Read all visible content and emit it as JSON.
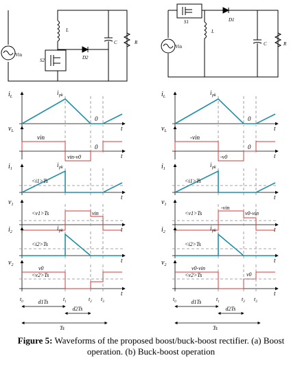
{
  "left_circuit": {
    "source": "Vin",
    "inductor": "L",
    "diode": "D2",
    "switch": "S2",
    "capacitor": "C",
    "resistor": "R"
  },
  "right_circuit": {
    "source": "Vin",
    "inductor": "L",
    "diode": "D1",
    "switch": "S1",
    "capacitor": "C",
    "resistor": "R"
  },
  "left_waveforms": {
    "iL": {
      "ylabel_main": "i",
      "ylabel_sub": "L",
      "peak": "pk",
      "zero": "0",
      "x": "t"
    },
    "vL": {
      "ylabel_main": "v",
      "ylabel_sub": "L",
      "top": "vin",
      "bottom": "vin-v0",
      "zero": "0",
      "x": "t"
    },
    "i1": {
      "ylabel_main": "i",
      "ylabel_sub": "1",
      "peak": "pk",
      "avg": "<i1>Ts",
      "x": "t"
    },
    "v1": {
      "ylabel_main": "v",
      "ylabel_sub": "1",
      "avg": "<v1>Ts",
      "level": "vin",
      "x": "t"
    },
    "i2": {
      "ylabel_main": "i",
      "ylabel_sub": "2",
      "peak": "pk",
      "avg": "<i2>Ts",
      "x": "t"
    },
    "v2": {
      "ylabel_main": "v",
      "ylabel_sub": "2",
      "level": "v0",
      "avg": "<v2>Ts",
      "x": "t"
    },
    "ticks": [
      "t0",
      "t1",
      "t2",
      "t3"
    ],
    "d1": "d1Ts",
    "d2": "d2Ts",
    "ts": "Ts"
  },
  "right_waveforms": {
    "iL": {
      "ylabel_main": "i",
      "ylabel_sub": "L",
      "peak": "pk",
      "zero": "0",
      "x": "t"
    },
    "vL": {
      "ylabel_main": "v",
      "ylabel_sub": "L",
      "top": "-vin",
      "bottom": "-v0",
      "zero": "0",
      "x": "t"
    },
    "i1": {
      "ylabel_main": "i",
      "ylabel_sub": "1",
      "peak": "pk",
      "avg": "<i1>Ts",
      "x": "t"
    },
    "v1": {
      "ylabel_main": "v",
      "ylabel_sub": "1",
      "avg": "<v1>Ts",
      "level": "v0-vin",
      "level2": "-vin",
      "x": "t"
    },
    "i2": {
      "ylabel_main": "i",
      "ylabel_sub": "2",
      "peak": "pk",
      "avg": "<i2>Ts",
      "x": "t"
    },
    "v2": {
      "ylabel_main": "v",
      "ylabel_sub": "2",
      "level": "v0-vin",
      "avg": "<v2>Ts",
      "level2": "v0",
      "x": "t"
    },
    "ticks": [
      "t0",
      "t1",
      "t2",
      "t3"
    ],
    "d1": "d1Ts",
    "d2": "d2Ts",
    "ts": "Ts"
  },
  "caption": {
    "label": "Figure 5:",
    "text": "Waveforms of the proposed boost/buck-boost rectifier. (a) Boost operation. (b) Buck-boost operation"
  },
  "colors": {
    "teal": "#1f8fa8",
    "red": "#d23a3a",
    "gray": "#888888"
  }
}
